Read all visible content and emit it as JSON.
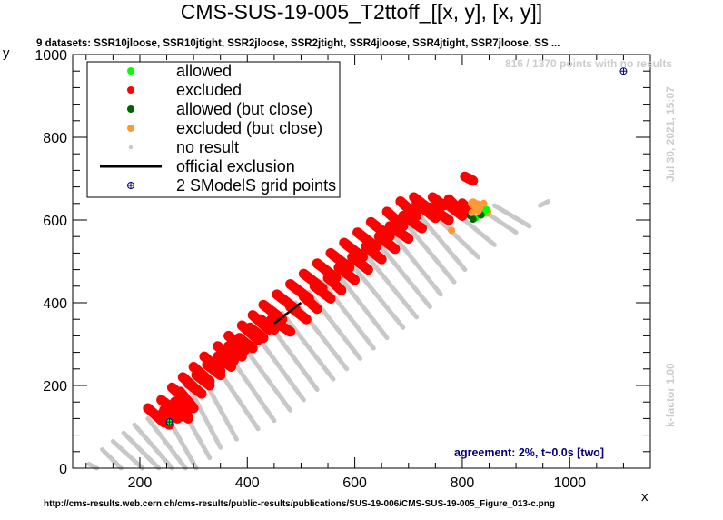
{
  "title": "CMS-SUS-19-005_T2ttoff_[[x, y], [x, y]]",
  "subtitle": "9 datasets: SSR10jloose, SSR10jtight, SSR2jloose, SSR2jtight, SSR4jloose, SSR4jtight, SSR7jloose, SS ...",
  "points_note": "816 / 1370 points with no results",
  "date_note": "Jul 30, 2021, 15:07",
  "kfactor_note": "k-factor 1.00",
  "agreement_note": "agreement: 2%, t~0.0s [two]",
  "source_url": "http://cms-results.web.cern.ch/cms-results/public-results/publications/SUS-19-006/CMS-SUS-19-005_Figure_013-c.png",
  "colors": {
    "allowed": "#00ff00",
    "excluded": "#ff0000",
    "allowed_close": "#006400",
    "excluded_close": "#ff9933",
    "no_result": "#c8c8c8",
    "official": "#000000",
    "grid_points": "#000080"
  },
  "chart_data": {
    "type": "scatter",
    "xlabel": "x",
    "ylabel": "y",
    "xlim": [
      75,
      1150
    ],
    "ylim": [
      0,
      1000
    ],
    "xticks": [
      200,
      400,
      600,
      800,
      1000
    ],
    "yticks": [
      0,
      200,
      400,
      600,
      800,
      1000
    ],
    "legend_position": "top-left",
    "legend": [
      {
        "key": "allowed",
        "label": "allowed",
        "marker": "circle"
      },
      {
        "key": "excluded",
        "label": "excluded",
        "marker": "circle"
      },
      {
        "key": "allowed_close",
        "label": "allowed (but close)",
        "marker": "circle"
      },
      {
        "key": "excluded_close",
        "label": "excluded (but close)",
        "marker": "circle"
      },
      {
        "key": "no_result",
        "label": "no result",
        "marker": "small-circle"
      },
      {
        "key": "official",
        "label": "official exclusion",
        "marker": "line"
      },
      {
        "key": "grid_points",
        "label": "2 SModelS grid points",
        "marker": "cross"
      }
    ],
    "bands": [
      {
        "x0": 105,
        "y0": 10,
        "x1": 120,
        "y1": 0,
        "cls": "no_result"
      },
      {
        "x0": 130,
        "y0": 45,
        "x1": 165,
        "y1": 0,
        "cls": "no_result"
      },
      {
        "x0": 150,
        "y0": 65,
        "x1": 205,
        "y1": 0,
        "cls": "no_result"
      },
      {
        "x0": 170,
        "y0": 85,
        "x1": 235,
        "y1": 0,
        "cls": "no_result"
      },
      {
        "x0": 190,
        "y0": 105,
        "x1": 260,
        "y1": 0,
        "cls": "no_result"
      },
      {
        "x0": 215,
        "y0": 120,
        "x1": 285,
        "y1": 0,
        "cls": "no_result"
      },
      {
        "x0": 240,
        "y0": 150,
        "x1": 305,
        "y1": 0,
        "cls": "no_result"
      },
      {
        "x0": 265,
        "y0": 175,
        "x1": 330,
        "y1": 25,
        "cls": "no_result"
      },
      {
        "x0": 290,
        "y0": 200,
        "x1": 350,
        "y1": 50,
        "cls": "no_result"
      },
      {
        "x0": 315,
        "y0": 225,
        "x1": 380,
        "y1": 70,
        "cls": "no_result"
      },
      {
        "x0": 340,
        "y0": 250,
        "x1": 420,
        "y1": 95,
        "cls": "no_result"
      },
      {
        "x0": 365,
        "y0": 275,
        "x1": 450,
        "y1": 115,
        "cls": "no_result"
      },
      {
        "x0": 390,
        "y0": 300,
        "x1": 480,
        "y1": 140,
        "cls": "no_result"
      },
      {
        "x0": 415,
        "y0": 325,
        "x1": 505,
        "y1": 165,
        "cls": "no_result"
      },
      {
        "x0": 440,
        "y0": 350,
        "x1": 530,
        "y1": 190,
        "cls": "no_result"
      },
      {
        "x0": 465,
        "y0": 375,
        "x1": 560,
        "y1": 215,
        "cls": "no_result"
      },
      {
        "x0": 490,
        "y0": 400,
        "x1": 585,
        "y1": 240,
        "cls": "no_result"
      },
      {
        "x0": 515,
        "y0": 425,
        "x1": 610,
        "y1": 265,
        "cls": "no_result"
      },
      {
        "x0": 540,
        "y0": 450,
        "x1": 635,
        "y1": 290,
        "cls": "no_result"
      },
      {
        "x0": 565,
        "y0": 475,
        "x1": 660,
        "y1": 315,
        "cls": "no_result"
      },
      {
        "x0": 590,
        "y0": 500,
        "x1": 690,
        "y1": 340,
        "cls": "no_result"
      },
      {
        "x0": 615,
        "y0": 525,
        "x1": 715,
        "y1": 365,
        "cls": "no_result"
      },
      {
        "x0": 640,
        "y0": 550,
        "x1": 740,
        "y1": 390,
        "cls": "no_result"
      },
      {
        "x0": 665,
        "y0": 575,
        "x1": 760,
        "y1": 420,
        "cls": "no_result"
      },
      {
        "x0": 690,
        "y0": 600,
        "x1": 785,
        "y1": 450,
        "cls": "no_result"
      },
      {
        "x0": 715,
        "y0": 620,
        "x1": 805,
        "y1": 480,
        "cls": "no_result"
      },
      {
        "x0": 745,
        "y0": 615,
        "x1": 830,
        "y1": 510,
        "cls": "no_result"
      },
      {
        "x0": 790,
        "y0": 615,
        "x1": 860,
        "y1": 540,
        "cls": "no_result"
      },
      {
        "x0": 830,
        "y0": 630,
        "x1": 900,
        "y1": 570,
        "cls": "no_result"
      },
      {
        "x0": 860,
        "y0": 635,
        "x1": 925,
        "y1": 585,
        "cls": "no_result"
      },
      {
        "x0": 945,
        "y0": 635,
        "x1": 960,
        "y1": 645,
        "cls": "no_result"
      },
      {
        "x0": 240,
        "y0": 130,
        "x1": 255,
        "y1": 105,
        "cls": "excluded"
      },
      {
        "x0": 265,
        "y0": 160,
        "x1": 280,
        "y1": 125,
        "cls": "excluded"
      },
      {
        "x0": 275,
        "y0": 185,
        "x1": 300,
        "y1": 145,
        "cls": "excluded"
      },
      {
        "x0": 280,
        "y0": 170,
        "x1": 290,
        "y1": 120,
        "cls": "excluded"
      },
      {
        "x0": 290,
        "y0": 205,
        "x1": 315,
        "y1": 180,
        "cls": "excluded"
      },
      {
        "x0": 305,
        "y0": 225,
        "x1": 330,
        "y1": 200,
        "cls": "excluded"
      },
      {
        "x0": 325,
        "y0": 250,
        "x1": 350,
        "y1": 225,
        "cls": "excluded"
      },
      {
        "x0": 345,
        "y0": 270,
        "x1": 370,
        "y1": 245,
        "cls": "excluded"
      },
      {
        "x0": 365,
        "y0": 295,
        "x1": 390,
        "y1": 270,
        "cls": "excluded"
      },
      {
        "x0": 385,
        "y0": 315,
        "x1": 410,
        "y1": 290,
        "cls": "excluded"
      },
      {
        "x0": 405,
        "y0": 340,
        "x1": 430,
        "y1": 315,
        "cls": "excluded"
      },
      {
        "x0": 425,
        "y0": 360,
        "x1": 450,
        "y1": 335,
        "cls": "excluded"
      },
      {
        "x0": 445,
        "y0": 360,
        "x1": 480,
        "y1": 330,
        "cls": "excluded"
      },
      {
        "x0": 480,
        "y0": 390,
        "x1": 510,
        "y1": 360,
        "cls": "excluded"
      },
      {
        "x0": 505,
        "y0": 415,
        "x1": 530,
        "y1": 385,
        "cls": "excluded"
      },
      {
        "x0": 525,
        "y0": 440,
        "x1": 555,
        "y1": 410,
        "cls": "excluded"
      },
      {
        "x0": 550,
        "y0": 460,
        "x1": 575,
        "y1": 430,
        "cls": "excluded"
      },
      {
        "x0": 570,
        "y0": 485,
        "x1": 600,
        "y1": 455,
        "cls": "excluded"
      },
      {
        "x0": 595,
        "y0": 510,
        "x1": 625,
        "y1": 480,
        "cls": "excluded"
      },
      {
        "x0": 620,
        "y0": 535,
        "x1": 650,
        "y1": 505,
        "cls": "excluded"
      },
      {
        "x0": 645,
        "y0": 560,
        "x1": 675,
        "y1": 530,
        "cls": "excluded"
      },
      {
        "x0": 665,
        "y0": 585,
        "x1": 700,
        "y1": 555,
        "cls": "excluded"
      },
      {
        "x0": 690,
        "y0": 610,
        "x1": 725,
        "y1": 580,
        "cls": "excluded"
      },
      {
        "x0": 715,
        "y0": 640,
        "x1": 750,
        "y1": 605,
        "cls": "excluded"
      },
      {
        "x0": 740,
        "y0": 630,
        "x1": 775,
        "y1": 600,
        "cls": "excluded"
      },
      {
        "x0": 770,
        "y0": 640,
        "x1": 800,
        "y1": 610,
        "cls": "excluded"
      },
      {
        "x0": 805,
        "y0": 705,
        "x1": 820,
        "y1": 695,
        "cls": "excluded"
      },
      {
        "x0": 245,
        "y0": 140,
        "x1": 270,
        "y1": 120,
        "cls": "excluded"
      },
      {
        "x0": 215,
        "y0": 145,
        "x1": 245,
        "y1": 110,
        "cls": "excluded"
      },
      {
        "x0": 240,
        "y0": 165,
        "x1": 270,
        "y1": 135,
        "cls": "excluded"
      },
      {
        "x0": 260,
        "y0": 195,
        "x1": 290,
        "y1": 160,
        "cls": "excluded"
      },
      {
        "x0": 280,
        "y0": 220,
        "x1": 310,
        "y1": 185,
        "cls": "excluded"
      },
      {
        "x0": 300,
        "y0": 245,
        "x1": 330,
        "y1": 210,
        "cls": "excluded"
      },
      {
        "x0": 320,
        "y0": 270,
        "x1": 350,
        "y1": 235,
        "cls": "excluded"
      },
      {
        "x0": 345,
        "y0": 295,
        "x1": 375,
        "y1": 260,
        "cls": "excluded"
      },
      {
        "x0": 365,
        "y0": 320,
        "x1": 395,
        "y1": 285,
        "cls": "excluded"
      },
      {
        "x0": 390,
        "y0": 345,
        "x1": 420,
        "y1": 310,
        "cls": "excluded"
      },
      {
        "x0": 410,
        "y0": 370,
        "x1": 440,
        "y1": 335,
        "cls": "excluded"
      },
      {
        "x0": 430,
        "y0": 395,
        "x1": 465,
        "y1": 360,
        "cls": "excluded"
      },
      {
        "x0": 455,
        "y0": 420,
        "x1": 490,
        "y1": 385,
        "cls": "excluded"
      },
      {
        "x0": 480,
        "y0": 445,
        "x1": 515,
        "y1": 410,
        "cls": "excluded"
      },
      {
        "x0": 505,
        "y0": 470,
        "x1": 540,
        "y1": 435,
        "cls": "excluded"
      },
      {
        "x0": 530,
        "y0": 495,
        "x1": 565,
        "y1": 460,
        "cls": "excluded"
      },
      {
        "x0": 555,
        "y0": 520,
        "x1": 590,
        "y1": 485,
        "cls": "excluded"
      },
      {
        "x0": 580,
        "y0": 545,
        "x1": 615,
        "y1": 510,
        "cls": "excluded"
      },
      {
        "x0": 605,
        "y0": 570,
        "x1": 640,
        "y1": 535,
        "cls": "excluded"
      },
      {
        "x0": 630,
        "y0": 595,
        "x1": 665,
        "y1": 560,
        "cls": "excluded"
      },
      {
        "x0": 660,
        "y0": 620,
        "x1": 690,
        "y1": 585,
        "cls": "excluded"
      },
      {
        "x0": 685,
        "y0": 645,
        "x1": 715,
        "y1": 610,
        "cls": "excluded"
      },
      {
        "x0": 710,
        "y0": 655,
        "x1": 735,
        "y1": 630,
        "cls": "excluded"
      },
      {
        "x0": 745,
        "y0": 655,
        "x1": 765,
        "y1": 635,
        "cls": "excluded"
      },
      {
        "x0": 775,
        "y0": 650,
        "x1": 790,
        "y1": 630,
        "cls": "excluded"
      },
      {
        "x0": 800,
        "y0": 640,
        "x1": 815,
        "y1": 620,
        "cls": "excluded"
      },
      {
        "x0": 820,
        "y0": 640,
        "x1": 835,
        "y1": 625,
        "cls": "excluded_close"
      },
      {
        "x0": 830,
        "y0": 635,
        "x1": 845,
        "y1": 620,
        "cls": "excluded_close"
      }
    ],
    "points": [
      {
        "x": 255,
        "y": 112,
        "cls": "allowed"
      },
      {
        "x": 845,
        "y": 625,
        "cls": "allowed"
      },
      {
        "x": 838,
        "y": 615,
        "cls": "allowed"
      },
      {
        "x": 825,
        "y": 605,
        "cls": "allowed"
      },
      {
        "x": 835,
        "y": 612,
        "cls": "allowed_close"
      },
      {
        "x": 820,
        "y": 602,
        "cls": "allowed_close"
      },
      {
        "x": 815,
        "y": 610,
        "cls": "allowed_close"
      },
      {
        "x": 830,
        "y": 622,
        "cls": "excluded_close"
      },
      {
        "x": 818,
        "y": 618,
        "cls": "excluded_close"
      },
      {
        "x": 825,
        "y": 628,
        "cls": "excluded_close"
      },
      {
        "x": 780,
        "y": 575,
        "cls": "excluded_close"
      },
      {
        "x": 840,
        "y": 640,
        "cls": "excluded_close"
      }
    ],
    "official_exclusion": [
      [
        450,
        350
      ],
      [
        500,
        400
      ]
    ],
    "grid_points": [
      [
        255,
        112
      ],
      [
        1100,
        960
      ]
    ]
  }
}
